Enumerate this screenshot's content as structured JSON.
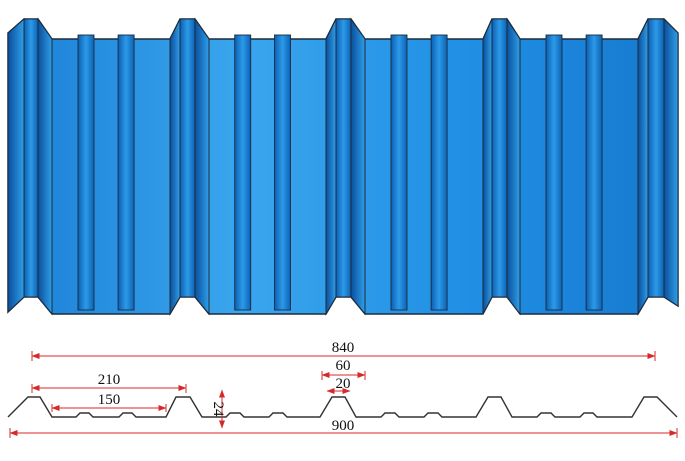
{
  "title": "",
  "colors": {
    "panel": "#1c8be0",
    "panel_light": "#5ab8f4",
    "panel_dark": "#0a56a6",
    "outline": "#1e2b3a",
    "dimension": "#d62a2a",
    "profile": "#333333",
    "text": "#111111"
  },
  "dimensions": {
    "effective_width": "840",
    "rib_pitch": "210",
    "pan_span": "150",
    "rib_top_outer": "60",
    "rib_top_inner": "20",
    "rib_height": "24",
    "total_width": "900"
  }
}
